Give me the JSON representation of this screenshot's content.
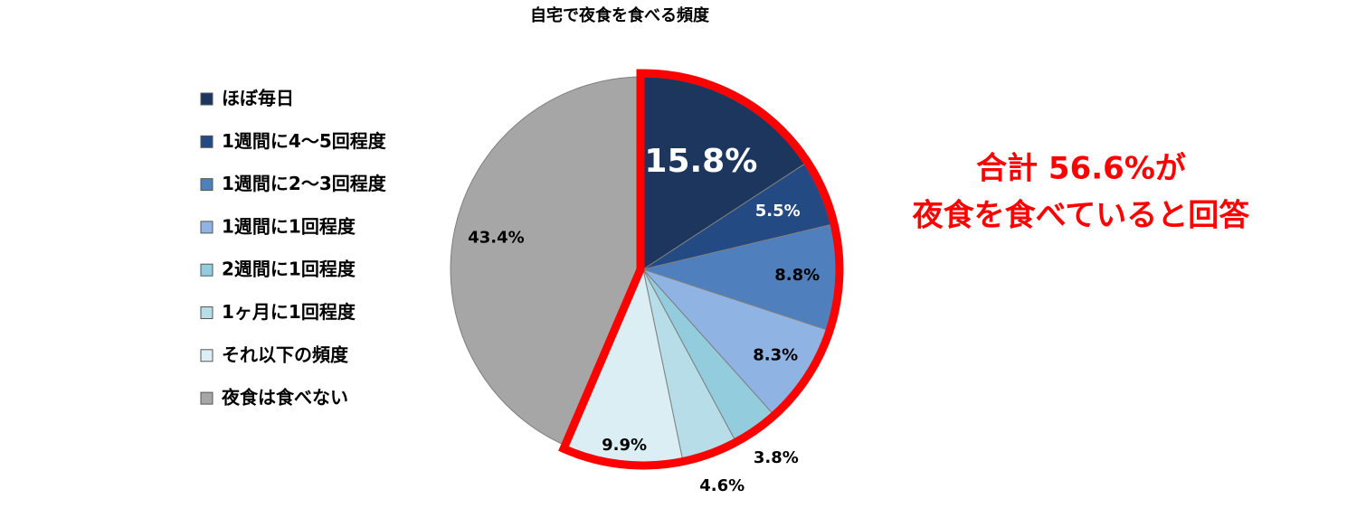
{
  "chart_data": {
    "type": "pie",
    "title": "自宅で夜食を食べる頻度",
    "categories": [
      "ほぼ毎日",
      "1週間に4～5回程度",
      "1週間に2～3回程度",
      "1週間に1回程度",
      "2週間に1回程度",
      "1ヶ月に1回程度",
      "それ以下の頻度",
      "夜食は食べない"
    ],
    "values": [
      15.8,
      5.5,
      8.8,
      8.3,
      3.8,
      4.6,
      9.9,
      43.4
    ],
    "value_labels": [
      "15.8%",
      "5.5%",
      "8.8%",
      "8.3%",
      "3.8%",
      "4.6%",
      "9.9%",
      "43.4%"
    ],
    "colors": [
      "#1c365e",
      "#234a82",
      "#4f7fbd",
      "#8fb3e3",
      "#93cddd",
      "#b7dee8",
      "#dbeef4",
      "#a6a6a6"
    ],
    "legend": "left",
    "annotations": [
      "合計 56.6%が",
      "夜食を食べていると回答"
    ]
  }
}
